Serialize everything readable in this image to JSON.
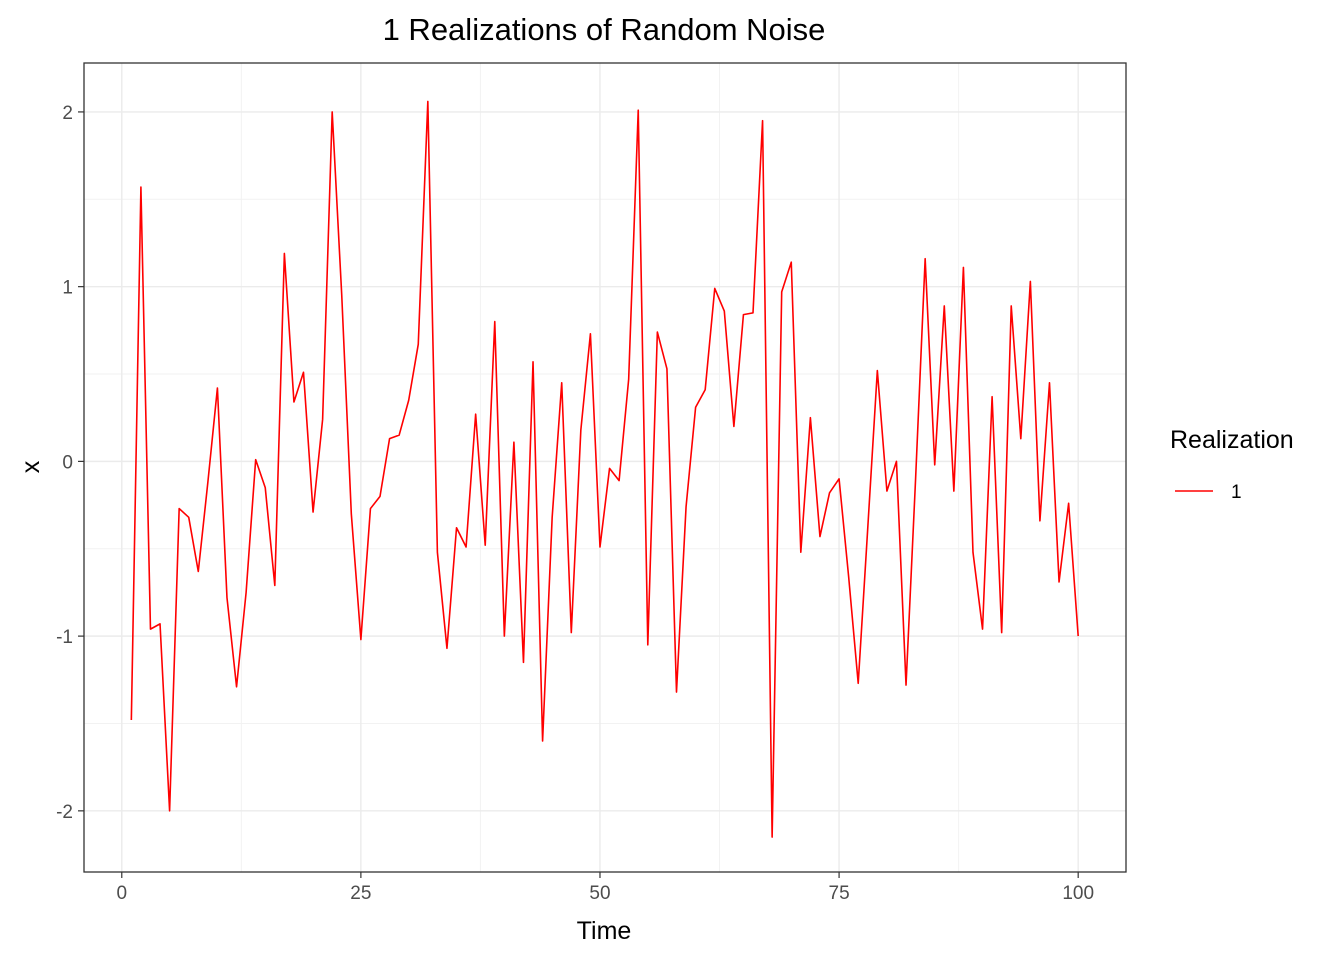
{
  "chart_data": {
    "type": "line",
    "title": "1 Realizations of Random Noise",
    "xlabel": "Time",
    "ylabel": "x",
    "xlim": [
      -3.95,
      105
    ],
    "ylim": [
      -2.35,
      2.28
    ],
    "x_ticks": [
      0,
      25,
      50,
      75,
      100
    ],
    "x_tick_labels": [
      "0",
      "25",
      "50",
      "75",
      "100"
    ],
    "y_ticks": [
      -2,
      -1,
      0,
      1,
      2
    ],
    "y_tick_labels": [
      "-2",
      "-1",
      "0",
      "1",
      "2"
    ],
    "grid": true,
    "legend": {
      "title": "Realization",
      "placement": "right"
    },
    "series": [
      {
        "name": "1",
        "color": "#ff0000",
        "x": [
          1,
          2,
          3,
          4,
          5,
          6,
          7,
          8,
          9,
          10,
          11,
          12,
          13,
          14,
          15,
          16,
          17,
          18,
          19,
          20,
          21,
          22,
          23,
          24,
          25,
          26,
          27,
          28,
          29,
          30,
          31,
          32,
          33,
          34,
          35,
          36,
          37,
          38,
          39,
          40,
          41,
          42,
          43,
          44,
          45,
          46,
          47,
          48,
          49,
          50,
          51,
          52,
          53,
          54,
          55,
          56,
          57,
          58,
          59,
          60,
          61,
          62,
          63,
          64,
          65,
          66,
          67,
          68,
          69,
          70,
          71,
          72,
          73,
          74,
          75,
          76,
          77,
          78,
          79,
          80,
          81,
          82,
          83,
          84,
          85,
          86,
          87,
          88,
          89,
          90,
          91,
          92,
          93,
          94,
          95,
          96,
          97,
          98,
          99,
          100
        ],
        "values": [
          -1.48,
          1.57,
          -0.96,
          -0.93,
          -2.0,
          -0.27,
          -0.32,
          -0.63,
          -0.12,
          0.42,
          -0.78,
          -1.29,
          -0.75,
          0.01,
          -0.15,
          -0.71,
          1.19,
          0.34,
          0.51,
          -0.29,
          0.24,
          2.0,
          0.95,
          -0.3,
          -1.02,
          -0.27,
          -0.2,
          0.13,
          0.15,
          0.35,
          0.67,
          2.06,
          -0.52,
          -1.07,
          -0.38,
          -0.49,
          0.27,
          -0.48,
          0.8,
          -1.0,
          0.11,
          -1.15,
          0.57,
          -1.6,
          -0.32,
          0.45,
          -0.98,
          0.18,
          0.73,
          -0.49,
          -0.04,
          -0.11,
          0.47,
          2.01,
          -1.05,
          0.74,
          0.53,
          -1.32,
          -0.26,
          0.31,
          0.41,
          0.99,
          0.86,
          0.2,
          0.84,
          0.85,
          1.95,
          -2.15,
          0.97,
          1.14,
          -0.52,
          0.25,
          -0.43,
          -0.18,
          -0.1,
          -0.66,
          -1.27,
          -0.38,
          0.52,
          -0.17,
          0.0,
          -1.28,
          -0.1,
          1.16,
          -0.02,
          0.89,
          -0.17,
          1.11,
          -0.52,
          -0.96,
          0.37,
          -0.98,
          0.89,
          0.13,
          1.03,
          -0.34,
          0.45,
          -0.69,
          -0.24,
          -1.0
        ]
      }
    ]
  }
}
